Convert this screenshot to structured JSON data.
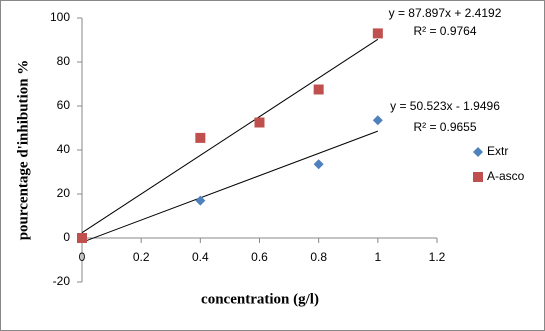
{
  "chart_data": {
    "type": "scatter",
    "x_label": "concentration (g/l)",
    "y_label": "pourcentage d'inhibution %",
    "xlim": [
      0,
      1.2
    ],
    "xticks": [
      0,
      0.2,
      0.4,
      0.6,
      0.8,
      1,
      1.2
    ],
    "ylim": [
      -20,
      100
    ],
    "yticks": [
      -20,
      0,
      20,
      40,
      60,
      80,
      100
    ],
    "grid": false,
    "legend": "right",
    "series": [
      {
        "name": "Extr",
        "color": "#4f81bd",
        "marker": "diamond",
        "x": [
          0,
          0.4,
          0.8,
          1
        ],
        "values": [
          0,
          17,
          33.5,
          53.5
        ],
        "trendline": {
          "slope": 50.523,
          "intercept": -1.9496,
          "label": "y = 50.523x - 1.9496",
          "r2_label": "R² = 0.9655"
        }
      },
      {
        "name": "A-asco",
        "color": "#c0504d",
        "marker": "square",
        "x": [
          0,
          0.4,
          0.6,
          0.8,
          1
        ],
        "values": [
          0,
          45.5,
          52.5,
          67.5,
          93
        ],
        "trendline": {
          "slope": 87.897,
          "intercept": 2.4192,
          "label": "y = 87.897x + 2.4192",
          "r2_label": "R² = 0.9764"
        }
      }
    ]
  }
}
